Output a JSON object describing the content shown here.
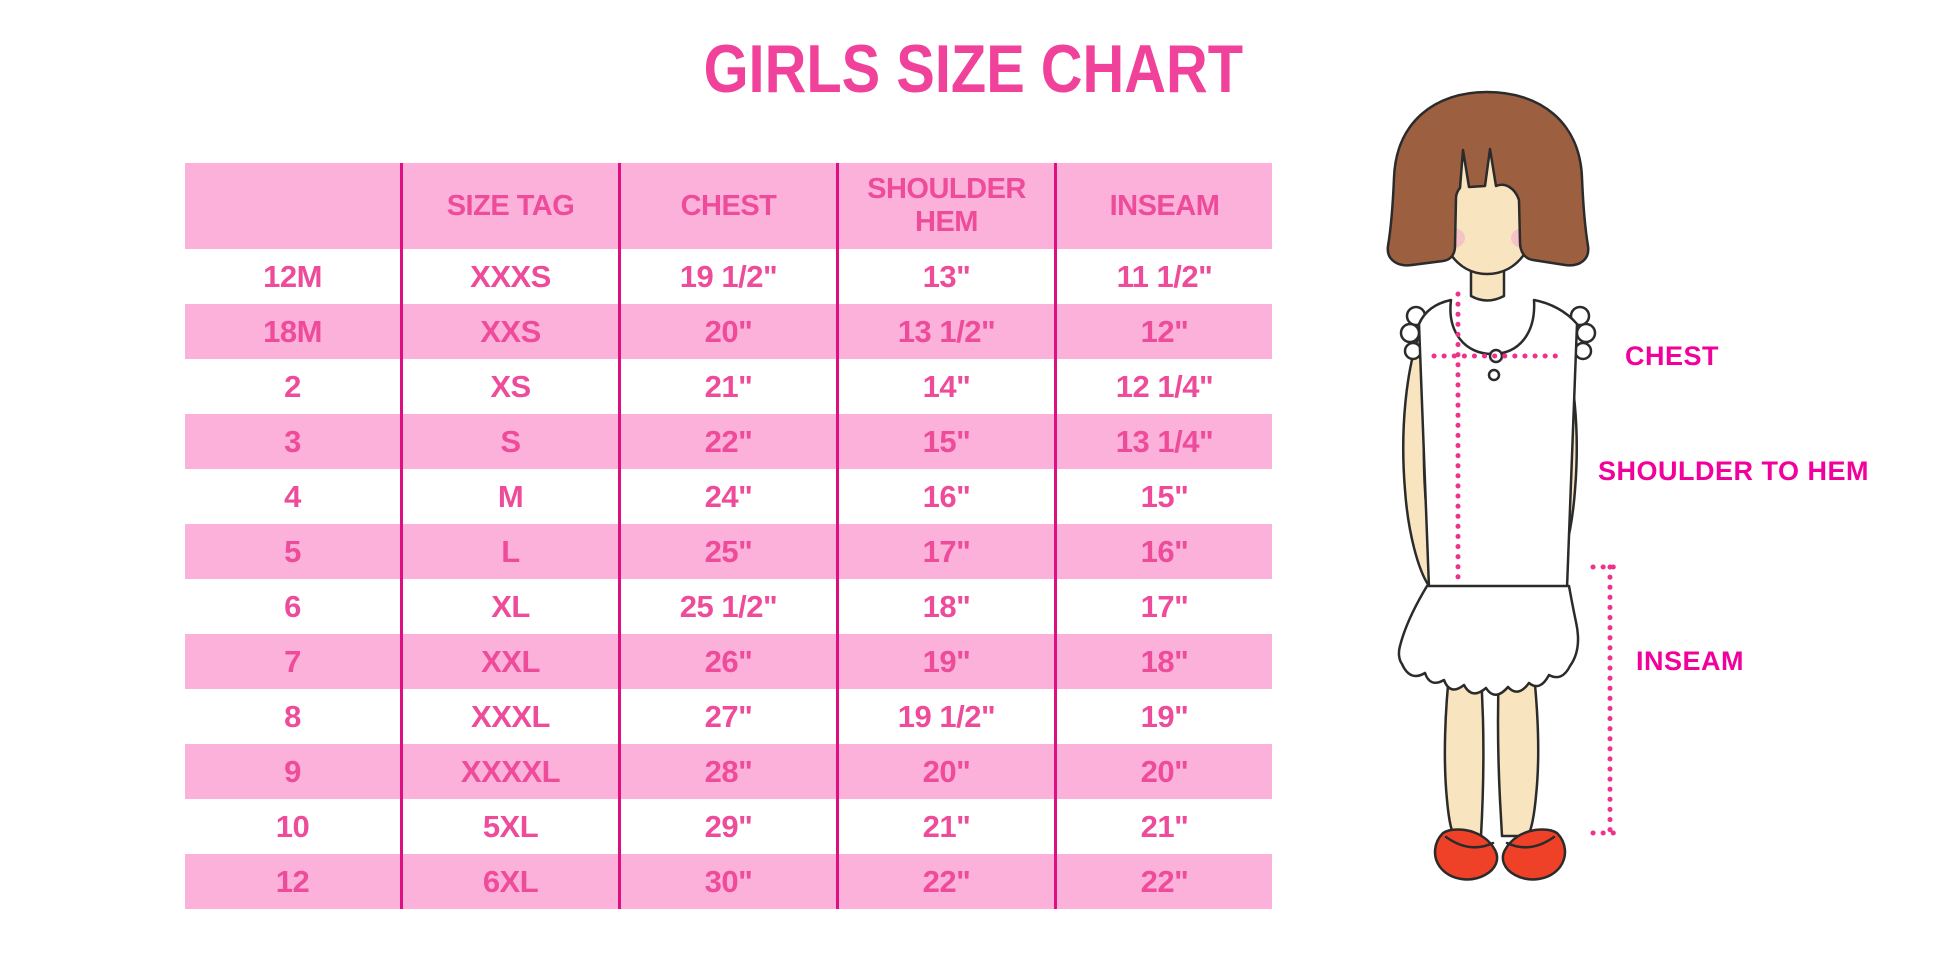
{
  "title": "GIRLS SIZE CHART",
  "table": {
    "headers": [
      "",
      "SIZE TAG",
      "CHEST",
      "SHOULDER HEM",
      "INSEAM"
    ],
    "rows": [
      [
        "12M",
        "XXXS",
        "19 1/2\"",
        "13\"",
        "11 1/2\""
      ],
      [
        "18M",
        "XXS",
        "20\"",
        "13 1/2\"",
        "12\""
      ],
      [
        "2",
        "XS",
        "21\"",
        "14\"",
        "12 1/4\""
      ],
      [
        "3",
        "S",
        "22\"",
        "15\"",
        "13 1/4\""
      ],
      [
        "4",
        "M",
        "24\"",
        "16\"",
        "15\""
      ],
      [
        "5",
        "L",
        "25\"",
        "17\"",
        "16\""
      ],
      [
        "6",
        "XL",
        "25 1/2\"",
        "18\"",
        "17\""
      ],
      [
        "7",
        "XXL",
        "26\"",
        "19\"",
        "18\""
      ],
      [
        "8",
        "XXXL",
        "27\"",
        "19 1/2\"",
        "19\""
      ],
      [
        "9",
        "XXXXL",
        "28\"",
        "20\"",
        "20\""
      ],
      [
        "10",
        "5XL",
        "29\"",
        "21\"",
        "21\""
      ],
      [
        "12",
        "6XL",
        "30\"",
        "22\"",
        "22\""
      ]
    ]
  },
  "figure": {
    "labels": {
      "chest": "CHEST",
      "shoulder_to_hem": "SHOULDER TO HEM",
      "inseam": "INSEAM"
    }
  },
  "colors": {
    "title_pink": "#F0429B",
    "stripe_pink": "#FBB1D9",
    "cell_text_pink": "#EE4C9B",
    "divider_magenta": "#DE0F81",
    "label_magenta": "#F2009B",
    "dotted_line_pink": "#F0318C",
    "hair_brown": "#9C5F40",
    "skin_tone": "#F8E4BE",
    "blush_pink": "#F4BCCA",
    "shoe_red": "#EE4128"
  }
}
